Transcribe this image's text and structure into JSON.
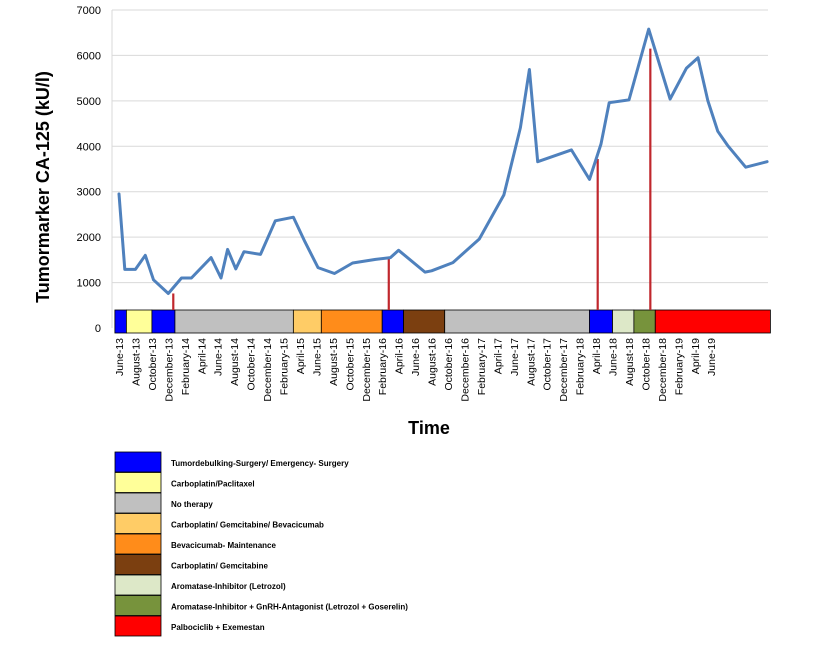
{
  "chart_data": {
    "type": "line",
    "title": "",
    "xlabel": "Time",
    "ylabel": "Tumormarker CA-125 (kU/l)",
    "ylim": [
      0,
      7000
    ],
    "yticks": [
      "0",
      "1000",
      "2000",
      "3000",
      "4000",
      "5000",
      "6000",
      "7000"
    ],
    "grid": true,
    "x_tick_labels": [
      "June-13",
      "August-13",
      "October-13",
      "December-13",
      "February-14",
      "April-14",
      "June-14",
      "August-14",
      "October-14",
      "December-14",
      "February-15",
      "April-15",
      "June-15",
      "August-15",
      "October-15",
      "December-15",
      "February-16",
      "April-16",
      "June-16",
      "August-16",
      "October-16",
      "December-16",
      "February-17",
      "April-17",
      "June-17",
      "August-17",
      "October-17",
      "December-17",
      "February-18",
      "April-18",
      "June-18",
      "August-18",
      "October-18",
      "December-18",
      "February-19",
      "April-19",
      "June-19"
    ],
    "series": [
      {
        "color": "#4f81bd",
        "points": [
          [
            0,
            2950
          ],
          [
            0.35,
            1290
          ],
          [
            1.0,
            1290
          ],
          [
            1.6,
            1600
          ],
          [
            2.1,
            1060
          ],
          [
            3.0,
            760
          ],
          [
            3.8,
            1100
          ],
          [
            4.4,
            1100
          ],
          [
            5.6,
            1550
          ],
          [
            6.2,
            1100
          ],
          [
            6.6,
            1730
          ],
          [
            7.1,
            1300
          ],
          [
            7.6,
            1680
          ],
          [
            8.6,
            1620
          ],
          [
            9.5,
            2360
          ],
          [
            10.6,
            2440
          ],
          [
            11.3,
            1900
          ],
          [
            12.1,
            1330
          ],
          [
            13.1,
            1200
          ],
          [
            14.2,
            1430
          ],
          [
            15.6,
            1510
          ],
          [
            16.5,
            1550
          ],
          [
            17.0,
            1710
          ],
          [
            18.6,
            1230
          ],
          [
            19.0,
            1260
          ],
          [
            20.3,
            1440
          ],
          [
            21.9,
            1960
          ],
          [
            23.4,
            2930
          ],
          [
            24.4,
            4410
          ],
          [
            24.95,
            5690
          ],
          [
            25.45,
            3660
          ],
          [
            27.5,
            3920
          ],
          [
            28.6,
            3270
          ],
          [
            29.3,
            4050
          ],
          [
            29.8,
            4960
          ],
          [
            31.0,
            5020
          ],
          [
            32.2,
            6580
          ],
          [
            33.5,
            5040
          ],
          [
            34.5,
            5720
          ],
          [
            35.2,
            5950
          ],
          [
            35.8,
            5000
          ],
          [
            36.4,
            4330
          ],
          [
            37.0,
            4020
          ],
          [
            38.1,
            3540
          ],
          [
            39.4,
            3660
          ]
        ]
      }
    ],
    "markers": [
      {
        "x": 3.3,
        "y": 760,
        "color": "#c0272d"
      },
      {
        "x": 16.4,
        "y": 1520,
        "color": "#c0272d"
      },
      {
        "x": 29.1,
        "y": 3720,
        "color": "#c0272d"
      },
      {
        "x": 32.3,
        "y": 6150,
        "color": "#c0272d"
      }
    ],
    "therapy_bar": [
      {
        "from": -0.25,
        "to": 0.45,
        "color": "#0000ff"
      },
      {
        "from": 0.45,
        "to": 2.0,
        "color": "#ffff99"
      },
      {
        "from": 2.0,
        "to": 3.4,
        "color": "#0000ff"
      },
      {
        "from": 3.4,
        "to": 10.6,
        "color": "#c0c0c0"
      },
      {
        "from": 10.6,
        "to": 12.3,
        "color": "#ffcc66"
      },
      {
        "from": 12.3,
        "to": 16.0,
        "color": "#ff8c1a"
      },
      {
        "from": 16.0,
        "to": 17.3,
        "color": "#0000ff"
      },
      {
        "from": 17.3,
        "to": 19.8,
        "color": "#7b3f10"
      },
      {
        "from": 19.8,
        "to": 28.6,
        "color": "#c0c0c0"
      },
      {
        "from": 28.6,
        "to": 30.0,
        "color": "#0000ff"
      },
      {
        "from": 30.0,
        "to": 31.3,
        "color": "#dde8c8"
      },
      {
        "from": 31.3,
        "to": 32.6,
        "color": "#77933c"
      },
      {
        "from": 32.6,
        "to": 39.6,
        "color": "#ff0000"
      }
    ],
    "legend": [
      {
        "color": "#0000ff",
        "label": "Tumordebulking-Surgery/ Emergency- Surgery"
      },
      {
        "color": "#ffff99",
        "label": "Carboplatin/Paclitaxel"
      },
      {
        "color": "#c0c0c0",
        "label": "No therapy"
      },
      {
        "color": "#ffcc66",
        "label": "Carboplatin/ Gemcitabine/ Bevacicumab"
      },
      {
        "color": "#ff8c1a",
        "label": "Bevacicumab- Maintenance"
      },
      {
        "color": "#7b3f10",
        "label": "Carboplatin/ Gemcitabine"
      },
      {
        "color": "#dde8c8",
        "label": "Aromatase-Inhibitor (Letrozol)"
      },
      {
        "color": "#77933c",
        "label": "Aromatase-Inhibitor + GnRH-Antagonist (Letrozol + Goserelin)"
      },
      {
        "color": "#ff0000",
        "label": "Palbociclib + Exemestan"
      }
    ]
  }
}
